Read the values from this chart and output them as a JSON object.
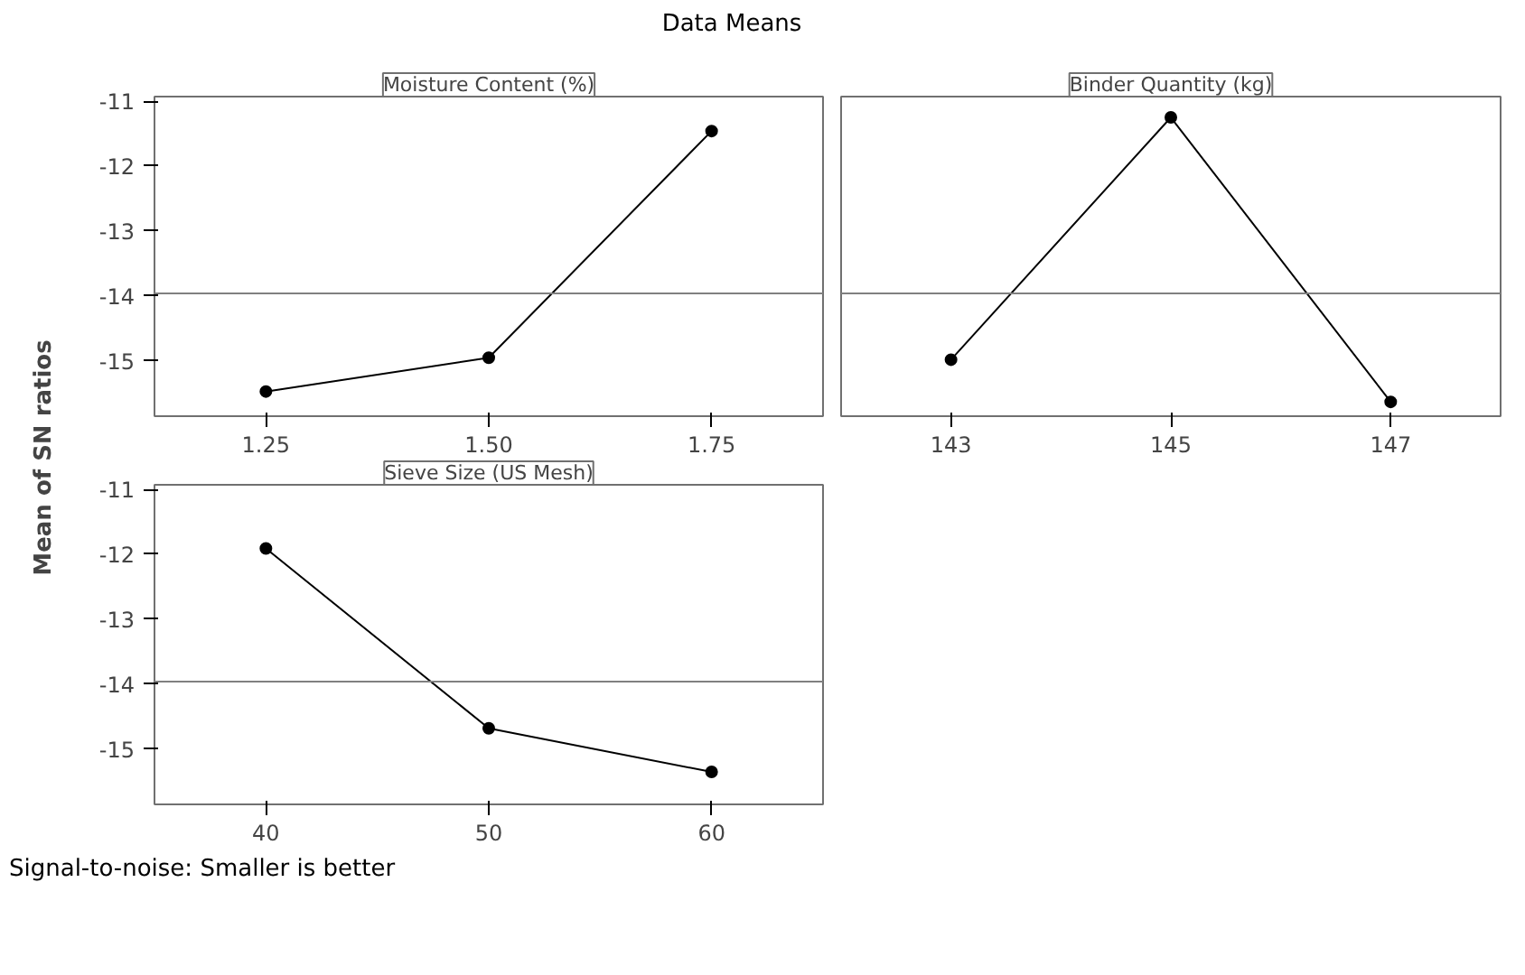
{
  "chart_data": [
    {
      "type": "line",
      "title": "Moisture Content (%)",
      "ylabel": "Mean of SN ratios",
      "annotations": [
        "Data Means"
      ],
      "x": [
        1.25,
        1.5,
        1.75
      ],
      "xlim": [
        1.125,
        1.875
      ],
      "xticks": [
        1.25,
        {
          "value": 1.5,
          "label": "1.50"
        },
        1.75
      ],
      "ylim": [
        -15.85,
        -10.93
      ],
      "yticks": [
        -15,
        -14,
        -13,
        -12,
        -11
      ],
      "series": [
        {
          "color": "#000000",
          "values": [
            -15.47,
            -14.95,
            -11.46
          ]
        }
      ],
      "ref_lines": [
        {
          "axis": "y",
          "value": -13.96,
          "color": "#808080"
        }
      ],
      "marker": "circle",
      "line_style": "solid",
      "grid": false
    },
    {
      "type": "line",
      "title": "Binder Quantity (kg)",
      "x": [
        143,
        145,
        147
      ],
      "xlim": [
        142,
        148
      ],
      "xticks": [
        143,
        145,
        147
      ],
      "ylim": [
        -15.85,
        -10.93
      ],
      "tick_labels": "x",
      "series": [
        {
          "color": "#000000",
          "values": [
            -14.98,
            -11.25,
            -15.63
          ]
        }
      ],
      "ref_lines": [
        {
          "axis": "y",
          "value": -13.96,
          "color": "#808080"
        }
      ],
      "marker": "circle",
      "line_style": "solid",
      "grid": false
    },
    {
      "type": "line",
      "title": "Sieve Size (US Mesh)",
      "annotations": [
        "Signal-to-noise: Smaller is better"
      ],
      "x": [
        40,
        50,
        60
      ],
      "xlim": [
        35,
        65
      ],
      "xticks": [
        40,
        50,
        60
      ],
      "ylim": [
        -15.85,
        -10.93
      ],
      "yticks": [
        -15,
        -14,
        -13,
        -12,
        -11
      ],
      "series": [
        {
          "color": "#000000",
          "values": [
            -11.91,
            -14.68,
            -15.35
          ]
        }
      ],
      "ref_lines": [
        {
          "axis": "y",
          "value": -13.96,
          "color": "#808080"
        }
      ],
      "marker": "circle",
      "line_style": "solid",
      "grid": false
    }
  ]
}
